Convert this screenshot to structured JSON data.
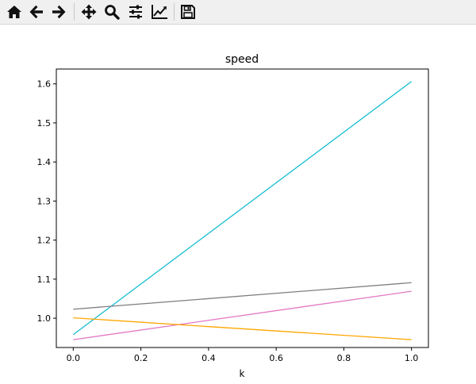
{
  "toolbar": {
    "buttons": [
      {
        "icon": "home-icon",
        "name": "home-button"
      },
      {
        "icon": "back-arrow-icon",
        "name": "back-button"
      },
      {
        "icon": "forward-arrow-icon",
        "name": "forward-button"
      },
      {
        "icon": "pan-move-icon",
        "name": "pan-button"
      },
      {
        "icon": "zoom-magnifier-icon",
        "name": "zoom-button"
      },
      {
        "icon": "configure-subplots-icon",
        "name": "configure-subplots-button"
      },
      {
        "icon": "edit-axis-icon",
        "name": "edit-axis-button"
      },
      {
        "icon": "save-floppy-icon",
        "name": "save-button"
      }
    ]
  },
  "chart_data": {
    "type": "line",
    "title": "speed",
    "xlabel": "k",
    "ylabel": "",
    "xlim": [
      -0.05,
      1.05
    ],
    "ylim": [
      0.925,
      1.638
    ],
    "xticks": [
      {
        "value": 0.0,
        "label": "0.0"
      },
      {
        "value": 0.2,
        "label": "0.2"
      },
      {
        "value": 0.4,
        "label": "0.4"
      },
      {
        "value": 0.6,
        "label": "0.6"
      },
      {
        "value": 0.8,
        "label": "0.8"
      },
      {
        "value": 1.0,
        "label": "1.0"
      }
    ],
    "yticks": [
      {
        "value": 1.0,
        "label": "1.0"
      },
      {
        "value": 1.1,
        "label": "1.1"
      },
      {
        "value": 1.2,
        "label": "1.2"
      },
      {
        "value": 1.3,
        "label": "1.3"
      },
      {
        "value": 1.4,
        "label": "1.4"
      },
      {
        "value": 1.5,
        "label": "1.5"
      },
      {
        "value": 1.6,
        "label": "1.6"
      }
    ],
    "grid": false,
    "series": [
      {
        "color": "#17becf",
        "x": [
          0,
          1
        ],
        "y": [
          0.958,
          1.606
        ]
      },
      {
        "color": "#7f7f7f",
        "x": [
          0,
          1
        ],
        "y": [
          1.023,
          1.091
        ]
      },
      {
        "color": "#e377c2",
        "x": [
          0,
          1
        ],
        "y": [
          0.945,
          1.069
        ]
      },
      {
        "color": "#ffa500",
        "x": [
          0,
          1
        ],
        "y": [
          1.001,
          0.945
        ]
      }
    ]
  }
}
